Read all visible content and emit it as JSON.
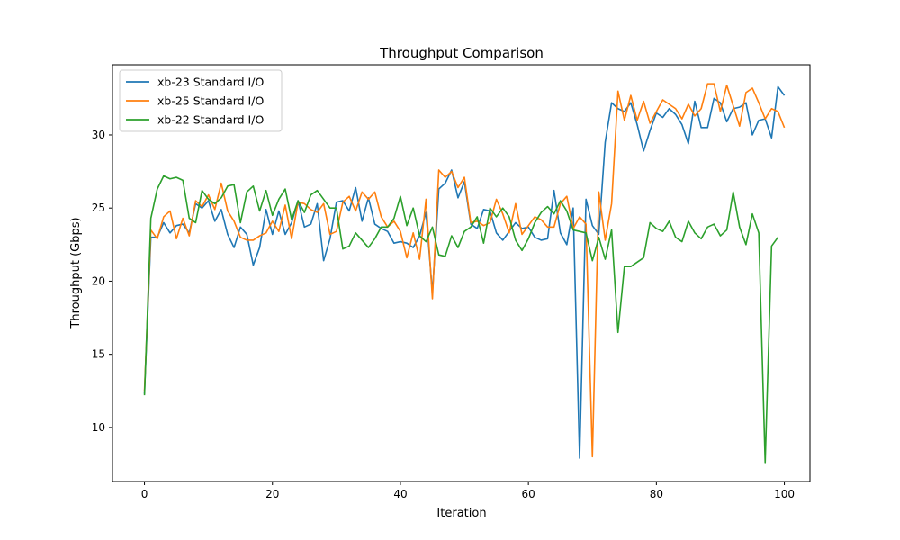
{
  "chart_data": {
    "type": "line",
    "title": "Throughput Comparison",
    "xlabel": "Iteration",
    "ylabel": "Throughput (Gbps)",
    "xlim": [
      -5,
      104
    ],
    "ylim": [
      6.3,
      34.8
    ],
    "xticks": [
      0,
      20,
      40,
      60,
      80,
      100
    ],
    "yticks": [
      10,
      15,
      20,
      25,
      30
    ],
    "grid": false,
    "legend_position": "upper-left",
    "series": [
      {
        "name": "xb-23 Standard I/O",
        "color": "#1f77b4",
        "values": [
          12.3,
          23.0,
          23.0,
          24.0,
          23.3,
          23.8,
          23.9,
          23.3,
          25.3,
          25.0,
          25.5,
          24.1,
          24.9,
          23.2,
          22.3,
          23.7,
          23.2,
          21.1,
          22.3,
          24.9,
          23.2,
          24.8,
          23.2,
          24.0,
          25.5,
          23.7,
          23.9,
          25.3,
          21.4,
          22.9,
          25.4,
          25.5,
          24.8,
          26.4,
          24.1,
          25.7,
          23.9,
          23.6,
          23.4,
          22.6,
          22.7,
          22.6,
          22.3,
          23.1,
          24.7,
          19.2,
          26.3,
          26.7,
          27.6,
          25.7,
          26.8,
          23.9,
          23.6,
          24.9,
          24.8,
          23.3,
          22.8,
          23.4,
          24.0,
          23.6,
          23.7,
          23.0,
          22.8,
          22.9,
          26.2,
          23.3,
          22.5,
          25.0,
          7.9,
          25.6,
          23.8,
          23.2,
          29.5,
          32.2,
          31.8,
          31.6,
          32.2,
          30.7,
          28.9,
          30.3,
          31.5,
          31.2,
          31.8,
          31.4,
          30.7,
          29.4,
          32.3,
          30.5,
          30.5,
          32.5,
          32.2,
          30.9,
          31.8,
          31.9,
          32.2,
          30.0,
          31.0,
          31.1,
          29.8,
          33.3,
          32.7
        ]
      },
      {
        "name": "xb-25 Standard I/O",
        "color": "#ff7f0e",
        "values": [
          12.5,
          23.5,
          22.9,
          24.4,
          24.8,
          22.9,
          24.3,
          23.1,
          25.5,
          25.1,
          25.9,
          24.9,
          26.7,
          24.8,
          24.1,
          23.0,
          22.8,
          22.8,
          23.1,
          23.3,
          24.1,
          23.4,
          25.2,
          22.9,
          25.4,
          25.3,
          24.9,
          24.7,
          25.3,
          23.2,
          23.4,
          25.4,
          25.8,
          24.8,
          26.1,
          25.6,
          26.1,
          24.4,
          23.7,
          24.1,
          23.4,
          21.6,
          23.3,
          21.5,
          25.6,
          18.8,
          27.6,
          27.1,
          27.5,
          26.4,
          27.1,
          24.0,
          24.1,
          23.8,
          24.0,
          25.6,
          24.6,
          23.3,
          25.3,
          23.2,
          23.8,
          24.4,
          24.2,
          23.7,
          23.7,
          25.3,
          25.8,
          23.6,
          24.4,
          23.9,
          8.0,
          26.1,
          22.8,
          25.3,
          33.0,
          31.0,
          32.7,
          31.0,
          32.3,
          30.8,
          31.6,
          32.4,
          32.1,
          31.8,
          31.1,
          32.1,
          31.3,
          31.8,
          33.5,
          33.5,
          31.6,
          33.4,
          32.0,
          30.6,
          32.9,
          33.2,
          32.2,
          31.1,
          31.8,
          31.6,
          30.5
        ]
      },
      {
        "name": "xb-22 Standard I/O",
        "color": "#2ca02c",
        "values": [
          12.2,
          24.3,
          26.3,
          27.2,
          27.0,
          27.1,
          26.9,
          24.3,
          24.0,
          26.2,
          25.6,
          25.3,
          25.7,
          26.5,
          26.6,
          24.0,
          26.1,
          26.5,
          24.8,
          26.2,
          24.5,
          25.6,
          26.3,
          24.2,
          25.5,
          24.7,
          25.9,
          26.2,
          25.6,
          25.0,
          25.0,
          22.2,
          22.4,
          23.3,
          22.8,
          22.3,
          22.9,
          23.7,
          23.7,
          24.3,
          25.8,
          23.8,
          25.0,
          23.1,
          22.7,
          23.7,
          21.8,
          21.7,
          23.1,
          22.3,
          23.4,
          23.7,
          24.4,
          22.6,
          25.0,
          24.4,
          25.0,
          24.4,
          22.8,
          22.1,
          22.9,
          24.0,
          24.7,
          25.1,
          24.6,
          25.5,
          24.8,
          23.5,
          23.4,
          23.3,
          21.4,
          23.0,
          21.5,
          23.5,
          16.5,
          21.0,
          21.0,
          21.3,
          21.6,
          24.0,
          23.6,
          23.4,
          24.1,
          23.0,
          22.7,
          24.1,
          23.3,
          22.9,
          23.7,
          23.9,
          23.1,
          23.5,
          26.1,
          23.7,
          22.5,
          24.6,
          23.3,
          7.6,
          22.4,
          23.0
        ]
      }
    ]
  }
}
